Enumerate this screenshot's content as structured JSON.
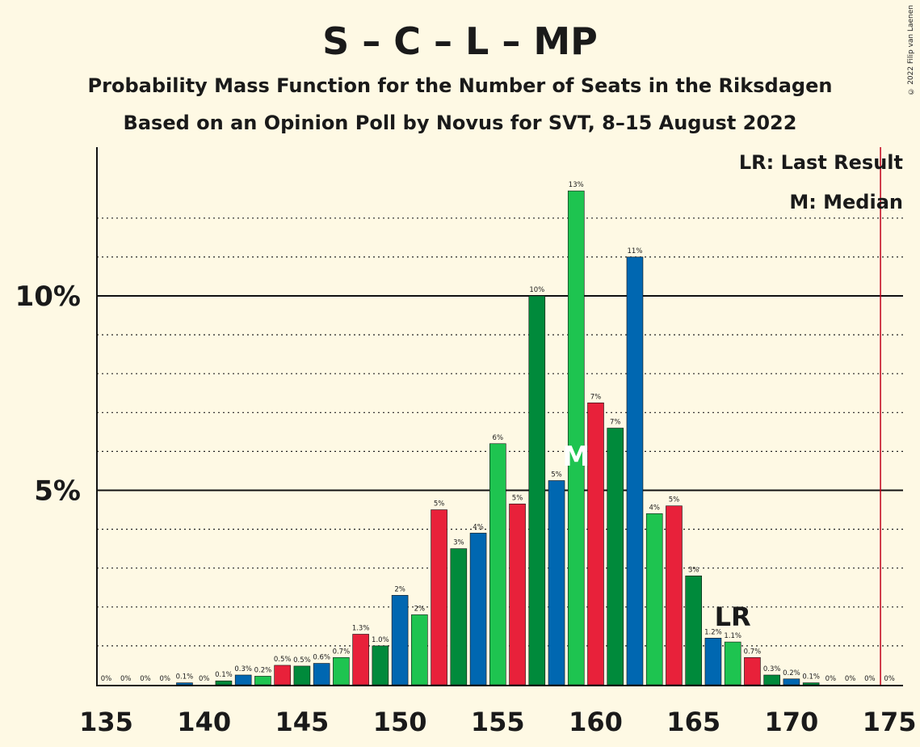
{
  "title": "S – C – L – MP",
  "subtitle": "Probability Mass Function for the Number of Seats in the Riksdagen",
  "subtitle2": "Based on an Opinion Poll by Novus for SVT, 8–15 August 2022",
  "copyright": "© 2022 Filip van Laenen",
  "legend": {
    "last_result": "LR: Last Result",
    "median": "M: Median"
  },
  "colors": {
    "red": "#e8213a",
    "dark_green": "#008a3b",
    "blue": "#0067b1",
    "light_green": "#1ec450",
    "majority_line": "#c0001a",
    "background": "#fef9e4"
  },
  "chart_data": {
    "type": "bar",
    "x": [
      135,
      136,
      137,
      138,
      139,
      140,
      141,
      142,
      143,
      144,
      145,
      146,
      147,
      148,
      149,
      150,
      151,
      152,
      153,
      154,
      155,
      156,
      157,
      158,
      159,
      160,
      161,
      162,
      163,
      164,
      165,
      166,
      167,
      168,
      169,
      170,
      171,
      172,
      173,
      174,
      175
    ],
    "values": [
      0,
      0,
      0,
      0,
      0.05,
      0,
      0.1,
      0.25,
      0.22,
      0.5,
      0.48,
      0.55,
      0.7,
      1.3,
      1.0,
      2.3,
      1.8,
      4.5,
      3.5,
      3.9,
      6.2,
      4.65,
      10.0,
      5.25,
      12.7,
      7.25,
      6.6,
      11.0,
      4.4,
      4.6,
      2.8,
      1.2,
      1.1,
      0.7,
      0.25,
      0.15,
      0.05,
      0,
      0,
      0,
      0
    ],
    "labels": [
      "0%",
      "0%",
      "0%",
      "0%",
      "0.1%",
      "0%",
      "0.1%",
      "0.3%",
      "0.2%",
      "0.5%",
      "0.5%",
      "0.6%",
      "0.7%",
      "1.3%",
      "1.0%",
      "2%",
      "2%",
      "5%",
      "3%",
      "4%",
      "6%",
      "5%",
      "10%",
      "5%",
      "13%",
      "7%",
      "7%",
      "11%",
      "4%",
      "5%",
      "3%",
      "1.2%",
      "1.1%",
      "0.7%",
      "0.3%",
      "0.2%",
      "0.1%",
      "0%",
      "0%",
      "0%",
      "0%"
    ],
    "bar_colors": [
      "blue",
      "light_green",
      "red",
      "dark_green",
      "blue",
      "light_green",
      "dark_green",
      "blue",
      "light_green",
      "red",
      "dark_green",
      "blue",
      "light_green",
      "red",
      "dark_green",
      "blue",
      "light_green",
      "red",
      "dark_green",
      "blue",
      "light_green",
      "red",
      "dark_green",
      "blue",
      "light_green",
      "red",
      "dark_green",
      "blue",
      "light_green",
      "red",
      "dark_green",
      "blue",
      "light_green",
      "red",
      "dark_green",
      "blue",
      "dark_green",
      "blue",
      "light_green",
      "red",
      "dark_green"
    ],
    "xlim": [
      135,
      175
    ],
    "ylim": [
      0,
      13.8
    ],
    "x_ticks": [
      135,
      140,
      145,
      150,
      155,
      160,
      165,
      170,
      175
    ],
    "x_tick_labels": [
      "135",
      "140",
      "145",
      "150",
      "155",
      "160",
      "165",
      "170",
      "175"
    ],
    "y_major_ticks": [
      5,
      10
    ],
    "y_tick_labels": [
      "5%",
      "10%"
    ],
    "y_minor_gridlines": [
      1,
      2,
      3,
      4,
      6,
      7,
      8,
      9,
      11,
      12
    ],
    "median": 159,
    "median_marker": "M",
    "last_result": 167,
    "last_result_marker": "LR",
    "majority": 175
  }
}
